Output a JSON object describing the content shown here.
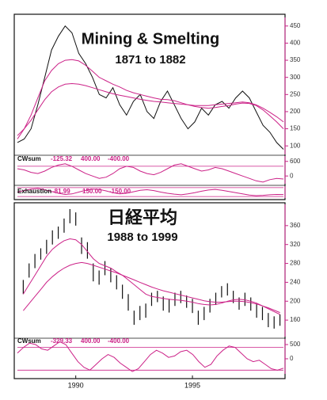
{
  "chart_data": [
    {
      "type": "line",
      "title": "Mining & Smelting",
      "subtitle": "1871 to 1882",
      "ylim": [
        75,
        475
      ],
      "yticks": [
        100,
        150,
        200,
        250,
        300,
        350,
        400,
        450
      ],
      "series": [
        {
          "color": "#111111",
          "values": [
            110,
            120,
            150,
            220,
            300,
            380,
            420,
            450,
            430,
            370,
            340,
            300,
            250,
            240,
            270,
            220,
            190,
            230,
            250,
            200,
            180,
            230,
            260,
            220,
            180,
            150,
            170,
            210,
            190,
            220,
            230,
            210,
            240,
            260,
            240,
            200,
            160,
            140,
            110,
            90
          ]
        },
        {
          "color": "#cc2288",
          "values": [
            120,
            150,
            190,
            240,
            290,
            320,
            340,
            350,
            352,
            348,
            335,
            318,
            300,
            290,
            280,
            272,
            262,
            255,
            250,
            245,
            240,
            236,
            235,
            232,
            226,
            220,
            215,
            212,
            210,
            212,
            215,
            218,
            222,
            225,
            224,
            218,
            205,
            188,
            170,
            150
          ]
        },
        {
          "color": "#cc2288",
          "values": [
            130,
            150,
            175,
            205,
            235,
            258,
            272,
            280,
            282,
            280,
            276,
            270,
            264,
            258,
            252,
            248,
            244,
            240,
            236,
            233,
            230,
            228,
            226,
            224,
            222,
            220,
            218,
            218,
            218,
            220,
            222,
            224,
            226,
            228,
            226,
            220,
            210,
            198,
            185,
            170
          ]
        }
      ],
      "indicators": [
        {
          "name": "CWsum",
          "value": -125.32,
          "levels": [
            {
              "value": 400,
              "label": "400.00"
            },
            {
              "value": -400,
              "label": "-400.00"
            }
          ],
          "ylim": [
            -320,
            820
          ],
          "yticks": [
            0,
            600
          ],
          "color": "#cc2288",
          "values": [
            300,
            250,
            150,
            100,
            200,
            350,
            450,
            500,
            400,
            250,
            100,
            0,
            -100,
            -50,
            100,
            300,
            400,
            350,
            200,
            100,
            50,
            150,
            300,
            450,
            500,
            400,
            300,
            200,
            250,
            350,
            300,
            200,
            100,
            0,
            -100,
            -200,
            -250,
            -150,
            -100,
            -125
          ]
        },
        {
          "name": "Exhaustion",
          "value": -81.99,
          "levels": [
            {
              "value": 150,
              "label": "150.00"
            },
            {
              "value": -150,
              "label": "-150.00"
            }
          ],
          "ylim": [
            -200,
            200
          ],
          "yticks": [],
          "color": "#cc2288",
          "values": [
            0,
            50,
            100,
            120,
            80,
            20,
            -40,
            -80,
            -60,
            0,
            60,
            100,
            90,
            40,
            -20,
            -60,
            -40,
            10,
            60,
            80,
            50,
            0,
            -40,
            -70,
            -90,
            -60,
            -20,
            30,
            70,
            90,
            60,
            20,
            -20,
            -60,
            -100,
            -120,
            -110,
            -90,
            -80,
            -82
          ]
        }
      ]
    },
    {
      "type": "ohlc",
      "title": "日経平均",
      "subtitle": "1988 to 1999",
      "ylim": [
        125,
        405
      ],
      "yticks": [
        160,
        200,
        240,
        280,
        320,
        360
      ],
      "xlim": [
        1987.5,
        1998.9
      ],
      "xticks": [
        1990,
        1995
      ],
      "x": [
        1987.75,
        1988,
        1988.25,
        1988.5,
        1988.75,
        1989,
        1989.25,
        1989.5,
        1989.75,
        1990,
        1990.25,
        1990.5,
        1990.75,
        1991,
        1991.25,
        1991.5,
        1991.75,
        1992,
        1992.25,
        1992.5,
        1992.75,
        1993,
        1993.25,
        1993.5,
        1993.75,
        1994,
        1994.25,
        1994.5,
        1994.75,
        1995,
        1995.25,
        1995.5,
        1995.75,
        1996,
        1996.25,
        1996.5,
        1996.75,
        1997,
        1997.25,
        1997.5,
        1997.75,
        1998,
        1998.25,
        1998.5,
        1998.75
      ],
      "high": [
        245,
        280,
        300,
        312,
        330,
        350,
        358,
        375,
        395,
        388,
        335,
        325,
        280,
        265,
        285,
        270,
        255,
        235,
        215,
        180,
        190,
        195,
        218,
        222,
        210,
        205,
        218,
        222,
        212,
        205,
        180,
        188,
        205,
        218,
        232,
        238,
        222,
        208,
        218,
        208,
        195,
        188,
        175,
        168,
        172
      ],
      "low": [
        215,
        250,
        270,
        288,
        300,
        320,
        332,
        345,
        365,
        360,
        300,
        290,
        242,
        235,
        255,
        240,
        225,
        205,
        180,
        150,
        160,
        165,
        190,
        198,
        180,
        176,
        190,
        196,
        186,
        175,
        150,
        160,
        176,
        192,
        208,
        212,
        196,
        182,
        190,
        180,
        165,
        160,
        145,
        142,
        148
      ],
      "bar_color": "#111111",
      "series": [
        {
          "color": "#cc2288",
          "values": [
            215,
            235,
            255,
            275,
            295,
            310,
            320,
            328,
            332,
            330,
            320,
            305,
            290,
            280,
            275,
            270,
            262,
            255,
            245,
            235,
            225,
            215,
            210,
            208,
            206,
            204,
            203,
            202,
            200,
            198,
            195,
            193,
            192,
            193,
            196,
            200,
            203,
            204,
            203,
            200,
            196,
            190,
            184,
            178,
            172
          ]
        },
        {
          "color": "#cc2288",
          "values": [
            180,
            195,
            210,
            225,
            240,
            252,
            262,
            270,
            276,
            280,
            282,
            280,
            276,
            272,
            268,
            264,
            260,
            255,
            250,
            245,
            240,
            235,
            230,
            226,
            222,
            219,
            216,
            213,
            210,
            207,
            204,
            201,
            199,
            198,
            198,
            199,
            200,
            200,
            199,
            197,
            194,
            190,
            186,
            181,
            176
          ]
        }
      ],
      "indicators": [
        {
          "name": "CWsum",
          "value": -329.33,
          "levels": [
            {
              "value": 400,
              "label": "400.00"
            },
            {
              "value": -400,
              "label": "-400.00"
            }
          ],
          "ylim": [
            -530,
            695
          ],
          "yticks": [
            0,
            500
          ],
          "color": "#cc2288",
          "values": [
            200,
            400,
            550,
            500,
            350,
            300,
            450,
            600,
            500,
            200,
            -100,
            -300,
            -400,
            -200,
            0,
            150,
            50,
            -150,
            -300,
            -450,
            -350,
            -100,
            150,
            300,
            200,
            50,
            100,
            250,
            300,
            150,
            -100,
            -300,
            -200,
            100,
            300,
            450,
            400,
            200,
            0,
            -100,
            -50,
            -200,
            -350,
            -400,
            -329
          ]
        }
      ]
    }
  ]
}
